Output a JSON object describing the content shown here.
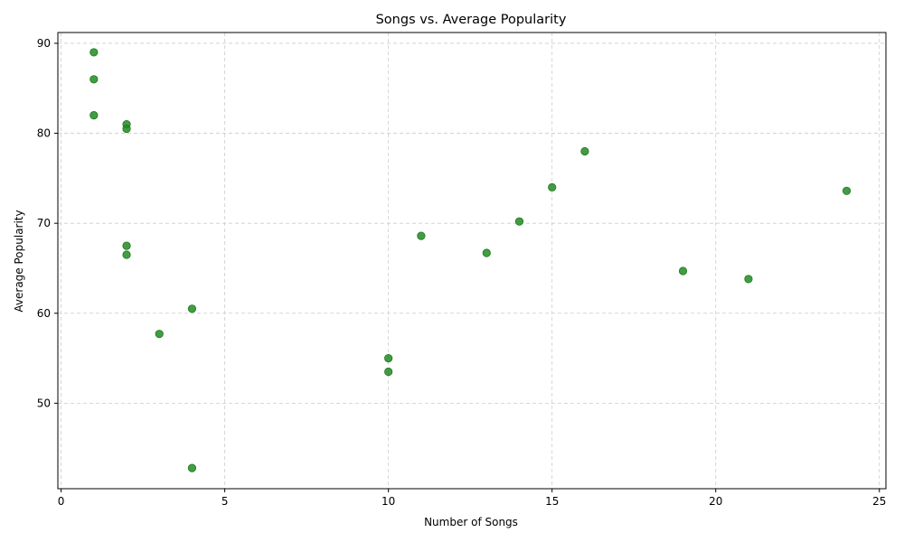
{
  "chart_data": {
    "type": "scatter",
    "title": "Songs vs. Average Popularity",
    "xlabel": "Number of Songs",
    "ylabel": "Average Popularity",
    "xlim": [
      -0.1,
      25.2
    ],
    "ylim": [
      40.5,
      91.2
    ],
    "xticks": [
      0,
      5,
      10,
      15,
      20,
      25
    ],
    "yticks": [
      50,
      60,
      70,
      80,
      90
    ],
    "grid": true,
    "marker_color": "#228b22",
    "points": [
      {
        "x": 1,
        "y": 89.0
      },
      {
        "x": 1,
        "y": 86.0
      },
      {
        "x": 1,
        "y": 82.0
      },
      {
        "x": 2,
        "y": 81.0
      },
      {
        "x": 2,
        "y": 80.5
      },
      {
        "x": 2,
        "y": 67.5
      },
      {
        "x": 2,
        "y": 66.5
      },
      {
        "x": 3,
        "y": 57.7
      },
      {
        "x": 4,
        "y": 60.5
      },
      {
        "x": 4,
        "y": 42.8
      },
      {
        "x": 10,
        "y": 55.0
      },
      {
        "x": 10,
        "y": 53.5
      },
      {
        "x": 11,
        "y": 68.6
      },
      {
        "x": 13,
        "y": 66.7
      },
      {
        "x": 14,
        "y": 70.2
      },
      {
        "x": 15,
        "y": 74.0
      },
      {
        "x": 16,
        "y": 78.0
      },
      {
        "x": 19,
        "y": 64.7
      },
      {
        "x": 21,
        "y": 63.8
      },
      {
        "x": 24,
        "y": 73.6
      }
    ]
  }
}
